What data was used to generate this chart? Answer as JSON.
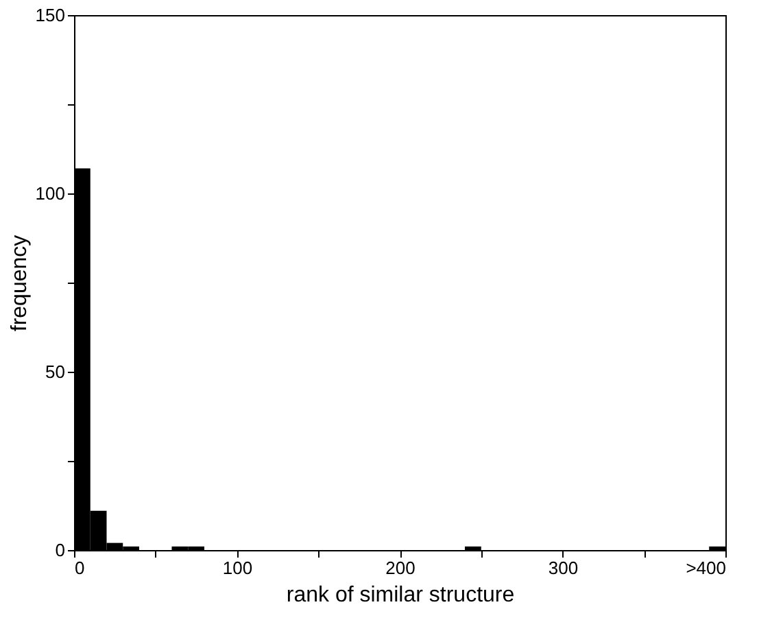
{
  "chart_data": {
    "type": "histogram",
    "xlabel": "rank of similar structure",
    "ylabel": "frequency",
    "bins": [
      0,
      10,
      20,
      30,
      40,
      50,
      60,
      70,
      80,
      90,
      100,
      110,
      120,
      130,
      140,
      150,
      160,
      170,
      180,
      190,
      200,
      210,
      220,
      230,
      240,
      250,
      260,
      270,
      280,
      290,
      300,
      310,
      320,
      330,
      340,
      350,
      360,
      370,
      380,
      390,
      400
    ],
    "values": [
      107,
      11,
      2,
      1,
      0,
      0,
      1,
      1,
      0,
      0,
      0,
      0,
      0,
      0,
      0,
      0,
      0,
      0,
      0,
      0,
      0,
      0,
      0,
      0,
      1,
      0,
      0,
      0,
      0,
      0,
      0,
      0,
      0,
      0,
      0,
      0,
      0,
      0,
      0,
      1
    ],
    "color": "#000000",
    "xlim": [
      0,
      400
    ],
    "xticks": [
      0,
      {
        "value": 50,
        "label": null
      },
      100,
      {
        "value": 150,
        "label": null
      },
      200,
      {
        "value": 250,
        "label": null
      },
      300,
      {
        "value": 350,
        "label": null
      },
      {
        "value": 400,
        "label": ">400"
      }
    ],
    "ylim": [
      0,
      150
    ],
    "yticks": [
      0,
      {
        "value": 25,
        "label": null
      },
      50,
      {
        "value": 75,
        "label": null
      },
      100,
      {
        "value": 125,
        "label": null
      },
      150
    ],
    "grid": false
  }
}
